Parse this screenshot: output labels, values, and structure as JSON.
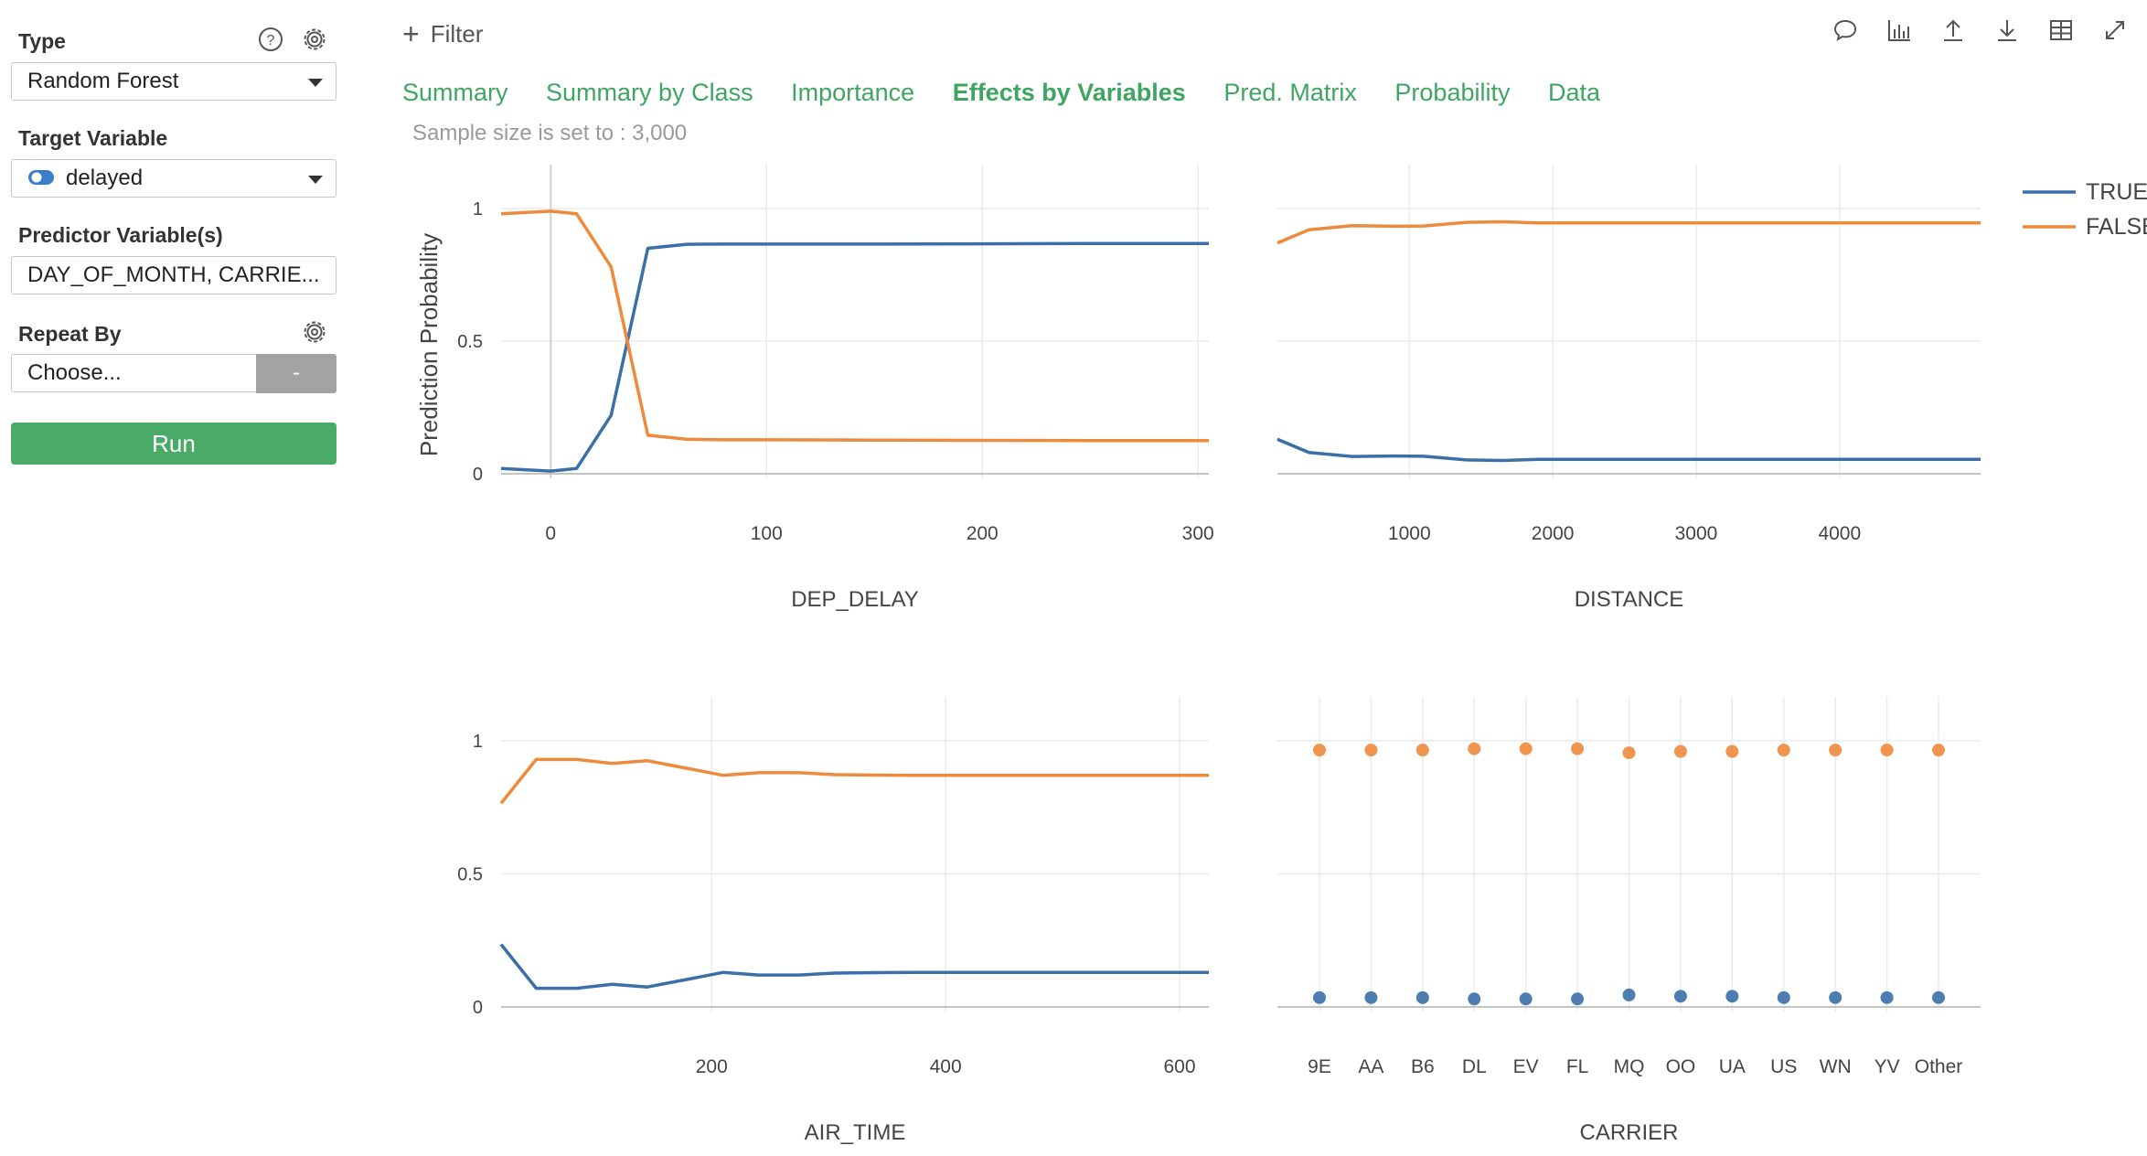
{
  "sidebar": {
    "type": {
      "label": "Type",
      "value": "Random Forest"
    },
    "target": {
      "label": "Target Variable",
      "value": "delayed"
    },
    "predictors": {
      "label": "Predictor Variable(s)",
      "value": "DAY_OF_MONTH, CARRIE..."
    },
    "repeat_by": {
      "label": "Repeat By",
      "placeholder": "Choose...",
      "button": "-"
    },
    "run_label": "Run"
  },
  "toolbar": {
    "filter_label": "Filter",
    "icons": [
      "comment-icon",
      "chart-icon",
      "upload-icon",
      "download-icon",
      "table-icon",
      "expand-icon"
    ]
  },
  "tabs": [
    {
      "label": "Summary",
      "active": false
    },
    {
      "label": "Summary by Class",
      "active": false
    },
    {
      "label": "Importance",
      "active": false
    },
    {
      "label": "Effects by Variables",
      "active": true
    },
    {
      "label": "Pred. Matrix",
      "active": false
    },
    {
      "label": "Probability",
      "active": false
    },
    {
      "label": "Data",
      "active": false
    }
  ],
  "sample_note": "Sample size is set to : 3,000",
  "colors": {
    "accent": "#3fa562",
    "run": "#4aab68",
    "true_series": "#3a6fa8",
    "false_series": "#ee8a3c"
  },
  "chart_data": {
    "type": "line",
    "ylabel": "Prediction Probability",
    "legend": {
      "placement": "top-right",
      "entries": [
        "TRUE",
        "FALSE"
      ]
    },
    "grid": true,
    "panels": [
      {
        "type": "line",
        "xlabel": "DEP_DELAY",
        "xlim": [
          -23,
          305
        ],
        "ylim": [
          0,
          1
        ],
        "xticks": [
          0,
          100,
          200,
          300
        ],
        "yticks": [
          0,
          0.5,
          1
        ],
        "ytick_labels": [
          "0",
          "0.5",
          "1"
        ],
        "series": [
          {
            "name": "TRUE",
            "x": [
              -23,
              0,
              12,
              28,
              45,
              63,
              80,
              100,
              150,
              200,
              250,
              305
            ],
            "values": [
              0.02,
              0.01,
              0.02,
              0.22,
              0.85,
              0.865,
              0.866,
              0.866,
              0.866,
              0.867,
              0.868,
              0.868
            ]
          },
          {
            "name": "FALSE",
            "x": [
              -23,
              0,
              12,
              28,
              45,
              63,
              80,
              100,
              150,
              200,
              250,
              305
            ],
            "values": [
              0.98,
              0.99,
              0.98,
              0.78,
              0.145,
              0.13,
              0.128,
              0.128,
              0.127,
              0.126,
              0.125,
              0.125
            ]
          }
        ]
      },
      {
        "type": "line",
        "xlabel": "DISTANCE",
        "xlim": [
          80,
          4983
        ],
        "ylim": [
          0,
          1
        ],
        "xticks": [
          1000,
          2000,
          3000,
          4000
        ],
        "yticks": [
          0,
          0.5,
          1
        ],
        "series": [
          {
            "name": "TRUE",
            "x": [
              80,
              300,
              600,
              900,
              1100,
              1400,
              1650,
              1900,
              2500,
              3500,
              4983
            ],
            "values": [
              0.13,
              0.08,
              0.065,
              0.067,
              0.066,
              0.052,
              0.05,
              0.054,
              0.054,
              0.054,
              0.054
            ]
          },
          {
            "name": "FALSE",
            "x": [
              80,
              300,
              600,
              900,
              1100,
              1400,
              1650,
              1900,
              2500,
              3500,
              4983
            ],
            "values": [
              0.87,
              0.92,
              0.935,
              0.933,
              0.934,
              0.948,
              0.95,
              0.946,
              0.946,
              0.946,
              0.946
            ]
          }
        ]
      },
      {
        "type": "line",
        "xlabel": "AIR_TIME",
        "xlim": [
          20,
          625
        ],
        "ylim": [
          0,
          1
        ],
        "xticks": [
          200,
          400,
          600
        ],
        "yticks": [
          0,
          0.5,
          1
        ],
        "ytick_labels": [
          "0",
          "0.5",
          "1"
        ],
        "series": [
          {
            "name": "TRUE",
            "x": [
              20,
              50,
              85,
              115,
              145,
              175,
              210,
              240,
              275,
              305,
              340,
              370,
              440,
              625
            ],
            "values": [
              0.235,
              0.07,
              0.07,
              0.085,
              0.075,
              0.1,
              0.13,
              0.12,
              0.12,
              0.127,
              0.129,
              0.13,
              0.13,
              0.13
            ]
          },
          {
            "name": "FALSE",
            "x": [
              20,
              50,
              85,
              115,
              145,
              175,
              210,
              240,
              275,
              305,
              340,
              370,
              440,
              625
            ],
            "values": [
              0.765,
              0.93,
              0.93,
              0.915,
              0.925,
              0.9,
              0.87,
              0.88,
              0.88,
              0.873,
              0.871,
              0.87,
              0.87,
              0.87
            ]
          }
        ]
      },
      {
        "type": "scatter",
        "xlabel": "CARRIER",
        "ylim": [
          0,
          1
        ],
        "yticks": [
          0,
          0.5,
          1
        ],
        "categories": [
          "9E",
          "AA",
          "B6",
          "DL",
          "EV",
          "FL",
          "MQ",
          "OO",
          "UA",
          "US",
          "WN",
          "YV",
          "Other"
        ],
        "series": [
          {
            "name": "TRUE",
            "values": [
              0.035,
              0.035,
              0.035,
              0.03,
              0.03,
              0.03,
              0.045,
              0.04,
              0.04,
              0.035,
              0.035,
              0.035,
              0.035
            ]
          },
          {
            "name": "FALSE",
            "values": [
              0.965,
              0.965,
              0.965,
              0.97,
              0.97,
              0.97,
              0.955,
              0.96,
              0.96,
              0.965,
              0.965,
              0.965,
              0.965
            ]
          }
        ]
      }
    ]
  }
}
